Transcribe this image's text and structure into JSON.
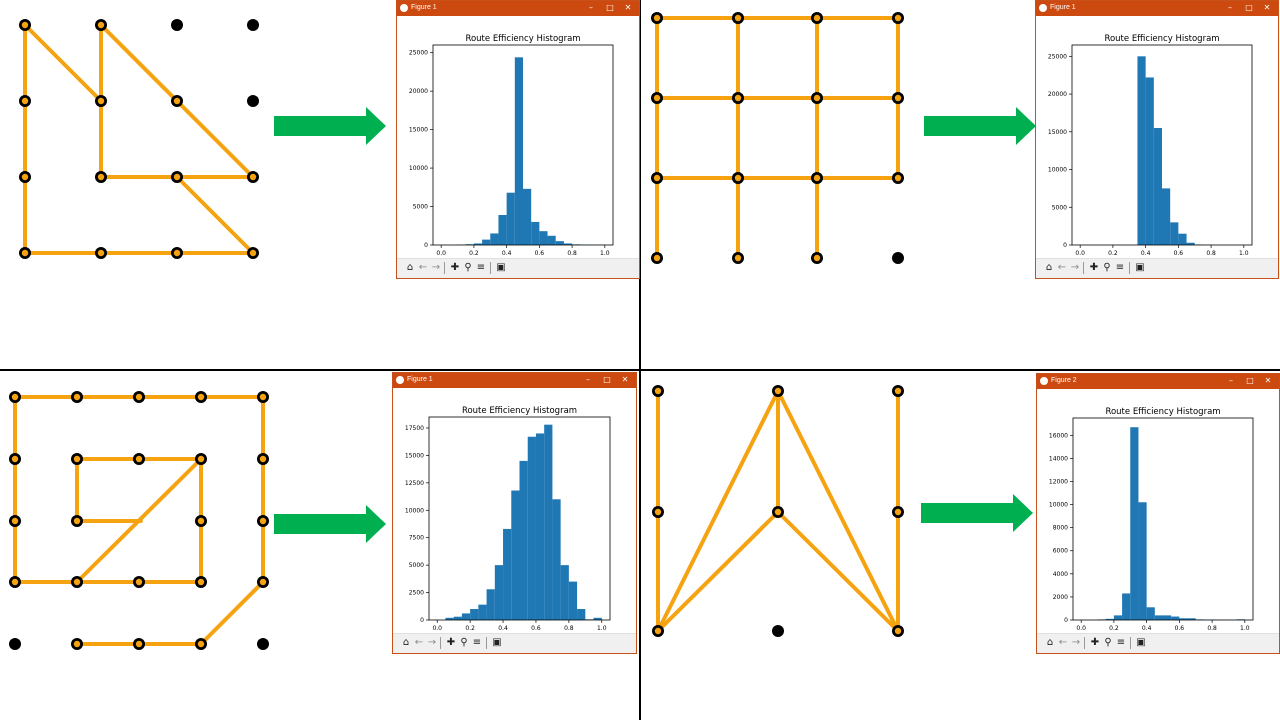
{
  "colors": {
    "edge": "#f5a311",
    "node_fill": "#000000",
    "node_active_inner": "#f5a311",
    "arrow": "#00b050",
    "titlebar": "#cc4a0f",
    "bar": "#1f77b4"
  },
  "panels": [
    {
      "window_title": "Figure 1",
      "nodes_active": [
        [
          0,
          0
        ],
        [
          1,
          0
        ],
        [
          0,
          1
        ],
        [
          1,
          1
        ],
        [
          2,
          1
        ],
        [
          0,
          2
        ],
        [
          1,
          2
        ],
        [
          2,
          2
        ],
        [
          3,
          2
        ],
        [
          0,
          3
        ],
        [
          1,
          3
        ],
        [
          2,
          3
        ],
        [
          3,
          3
        ]
      ],
      "nodes_inactive": [
        [
          2,
          0
        ],
        [
          3,
          0
        ],
        [
          3,
          1
        ]
      ],
      "edges": [
        [
          [
            0,
            0
          ],
          [
            0,
            3
          ]
        ],
        [
          [
            0,
            0
          ],
          [
            1,
            1
          ]
        ],
        [
          [
            1,
            0
          ],
          [
            1,
            2
          ]
        ],
        [
          [
            1,
            0
          ],
          [
            3,
            2
          ]
        ],
        [
          [
            1,
            2
          ],
          [
            3,
            2
          ]
        ],
        [
          [
            2,
            2
          ],
          [
            3,
            3
          ]
        ],
        [
          [
            0,
            3
          ],
          [
            3,
            3
          ]
        ]
      ]
    },
    {
      "window_title": "Figure 1",
      "nodes_active": [
        [
          0,
          0
        ],
        [
          1,
          0
        ],
        [
          2,
          0
        ],
        [
          3,
          0
        ],
        [
          0,
          1
        ],
        [
          1,
          1
        ],
        [
          2,
          1
        ],
        [
          3,
          1
        ],
        [
          0,
          2
        ],
        [
          1,
          2
        ],
        [
          2,
          2
        ],
        [
          3,
          2
        ],
        [
          0,
          3
        ],
        [
          1,
          3
        ],
        [
          2,
          3
        ]
      ],
      "nodes_inactive": [
        [
          3,
          3
        ]
      ],
      "edges": [
        [
          [
            0,
            0
          ],
          [
            3,
            0
          ]
        ],
        [
          [
            0,
            1
          ],
          [
            3,
            1
          ]
        ],
        [
          [
            0,
            2
          ],
          [
            3,
            2
          ]
        ],
        [
          [
            0,
            0
          ],
          [
            0,
            3
          ]
        ],
        [
          [
            1,
            0
          ],
          [
            1,
            3
          ]
        ],
        [
          [
            2,
            0
          ],
          [
            2,
            3
          ]
        ],
        [
          [
            3,
            0
          ],
          [
            3,
            2
          ]
        ]
      ]
    },
    {
      "window_title": "Figure 1",
      "nodes_active": [
        [
          0,
          0
        ],
        [
          1,
          0
        ],
        [
          2,
          0
        ],
        [
          3,
          0
        ],
        [
          4,
          0
        ],
        [
          0,
          1
        ],
        [
          1,
          1
        ],
        [
          2,
          1
        ],
        [
          3,
          1
        ],
        [
          4,
          1
        ],
        [
          0,
          2
        ],
        [
          1,
          2
        ],
        [
          3,
          2
        ],
        [
          4,
          2
        ],
        [
          0,
          3
        ],
        [
          1,
          3
        ],
        [
          2,
          3
        ],
        [
          3,
          3
        ],
        [
          4,
          3
        ],
        [
          1,
          4
        ],
        [
          2,
          4
        ],
        [
          3,
          4
        ]
      ],
      "nodes_inactive": [
        [
          0,
          4
        ],
        [
          4,
          4
        ]
      ],
      "edges": [
        [
          [
            0,
            0
          ],
          [
            4,
            0
          ]
        ],
        [
          [
            0,
            0
          ],
          [
            0,
            3
          ]
        ],
        [
          [
            0,
            3
          ],
          [
            3,
            3
          ]
        ],
        [
          [
            1,
            1
          ],
          [
            3,
            1
          ]
        ],
        [
          [
            1,
            1
          ],
          [
            1,
            2
          ]
        ],
        [
          [
            1,
            2
          ],
          [
            2.03,
            2
          ]
        ],
        [
          [
            1,
            3
          ],
          [
            3,
            1
          ]
        ],
        [
          [
            3,
            1
          ],
          [
            3,
            3
          ]
        ],
        [
          [
            4,
            0
          ],
          [
            4,
            3
          ]
        ],
        [
          [
            4,
            3
          ],
          [
            3,
            4
          ]
        ],
        [
          [
            1,
            4
          ],
          [
            3,
            4
          ]
        ]
      ]
    },
    {
      "window_title": "Figure 2",
      "nodes_active": [
        [
          0,
          0
        ],
        [
          1,
          0
        ],
        [
          2,
          0
        ],
        [
          0,
          1
        ],
        [
          1,
          1
        ],
        [
          2,
          1
        ],
        [
          0,
          2
        ],
        [
          2,
          2
        ]
      ],
      "nodes_inactive": [
        [
          1,
          2
        ]
      ],
      "edges": [
        [
          [
            0,
            0
          ],
          [
            0,
            2
          ]
        ],
        [
          [
            2,
            0
          ],
          [
            2,
            2
          ]
        ],
        [
          [
            1,
            0
          ],
          [
            1,
            1
          ]
        ],
        [
          [
            1,
            0
          ],
          [
            0,
            2
          ]
        ],
        [
          [
            1,
            0
          ],
          [
            2,
            2
          ]
        ],
        [
          [
            1,
            1
          ],
          [
            0,
            2
          ]
        ],
        [
          [
            1,
            1
          ],
          [
            2,
            2
          ]
        ]
      ]
    }
  ],
  "chart_data": [
    {
      "type": "bar",
      "title": "Route Efficiency Histogram",
      "xlabel": "",
      "ylabel": "",
      "xlim": [
        -0.05,
        1.05
      ],
      "ylim": [
        0,
        26000
      ],
      "xticks": [
        "0.0",
        "0.2",
        "0.4",
        "0.6",
        "0.8",
        "1.0"
      ],
      "yticks": [
        "0",
        "5000",
        "10000",
        "15000",
        "20000",
        "25000"
      ],
      "bins": [
        [
          0.1,
          0.15,
          30
        ],
        [
          0.15,
          0.2,
          100
        ],
        [
          0.2,
          0.25,
          200
        ],
        [
          0.25,
          0.3,
          700
        ],
        [
          0.3,
          0.35,
          1500
        ],
        [
          0.35,
          0.4,
          3900
        ],
        [
          0.4,
          0.45,
          6800
        ],
        [
          0.45,
          0.5,
          24400
        ],
        [
          0.5,
          0.55,
          7300
        ],
        [
          0.55,
          0.6,
          3000
        ],
        [
          0.6,
          0.65,
          1800
        ],
        [
          0.65,
          0.7,
          1200
        ],
        [
          0.7,
          0.75,
          500
        ],
        [
          0.75,
          0.8,
          200
        ],
        [
          0.8,
          0.85,
          80
        ],
        [
          0.85,
          0.9,
          30
        ],
        [
          0.9,
          0.95,
          10
        ],
        [
          0.95,
          1.0,
          30
        ]
      ]
    },
    {
      "type": "bar",
      "title": "Route Efficiency Histogram",
      "xlabel": "",
      "ylabel": "",
      "xlim": [
        -0.05,
        1.05
      ],
      "ylim": [
        0,
        26500
      ],
      "xticks": [
        "0.0",
        "0.2",
        "0.4",
        "0.6",
        "0.8",
        "1.0"
      ],
      "yticks": [
        "0",
        "5000",
        "10000",
        "15000",
        "20000",
        "25000"
      ],
      "bins": [
        [
          0.35,
          0.4,
          25000
        ],
        [
          0.4,
          0.45,
          22200
        ],
        [
          0.45,
          0.5,
          15500
        ],
        [
          0.5,
          0.55,
          7500
        ],
        [
          0.55,
          0.6,
          3000
        ],
        [
          0.6,
          0.65,
          1500
        ],
        [
          0.65,
          0.7,
          300
        ],
        [
          0.7,
          0.75,
          60
        ],
        [
          0.75,
          0.8,
          20
        ]
      ]
    },
    {
      "type": "bar",
      "title": "Route Efficiency Histogram",
      "xlabel": "",
      "ylabel": "",
      "xlim": [
        -0.05,
        1.05
      ],
      "ylim": [
        0,
        18500
      ],
      "xticks": [
        "0.0",
        "0.2",
        "0.4",
        "0.6",
        "0.8",
        "1.0"
      ],
      "yticks": [
        "0",
        "2500",
        "5000",
        "7500",
        "10000",
        "12500",
        "15000",
        "17500"
      ],
      "bins": [
        [
          0.05,
          0.1,
          200
        ],
        [
          0.1,
          0.15,
          300
        ],
        [
          0.15,
          0.2,
          600
        ],
        [
          0.2,
          0.25,
          1000
        ],
        [
          0.25,
          0.3,
          1400
        ],
        [
          0.3,
          0.35,
          2800
        ],
        [
          0.35,
          0.4,
          5000
        ],
        [
          0.4,
          0.45,
          8300
        ],
        [
          0.45,
          0.5,
          11800
        ],
        [
          0.5,
          0.55,
          14500
        ],
        [
          0.55,
          0.6,
          16700
        ],
        [
          0.6,
          0.65,
          17000
        ],
        [
          0.65,
          0.7,
          17800
        ],
        [
          0.7,
          0.75,
          11000
        ],
        [
          0.75,
          0.8,
          5000
        ],
        [
          0.8,
          0.85,
          3500
        ],
        [
          0.85,
          0.9,
          1000
        ],
        [
          0.9,
          0.95,
          60
        ],
        [
          0.95,
          1.0,
          200
        ]
      ]
    },
    {
      "type": "bar",
      "title": "Route Efficiency Histogram",
      "xlabel": "",
      "ylabel": "",
      "xlim": [
        -0.05,
        1.05
      ],
      "ylim": [
        0,
        17500
      ],
      "xticks": [
        "0.0",
        "0.2",
        "0.4",
        "0.6",
        "0.8",
        "1.0"
      ],
      "yticks": [
        "0",
        "2000",
        "4000",
        "6000",
        "8000",
        "10000",
        "12000",
        "14000",
        "16000"
      ],
      "bins": [
        [
          0.1,
          0.15,
          50
        ],
        [
          0.15,
          0.2,
          100
        ],
        [
          0.2,
          0.25,
          400
        ],
        [
          0.25,
          0.3,
          2300
        ],
        [
          0.3,
          0.35,
          16700
        ],
        [
          0.35,
          0.4,
          10200
        ],
        [
          0.4,
          0.45,
          1100
        ],
        [
          0.45,
          0.5,
          400
        ],
        [
          0.5,
          0.55,
          400
        ],
        [
          0.55,
          0.6,
          300
        ],
        [
          0.6,
          0.65,
          150
        ],
        [
          0.65,
          0.7,
          150
        ],
        [
          0.7,
          0.75,
          50
        ],
        [
          0.75,
          0.8,
          30
        ],
        [
          0.8,
          0.85,
          30
        ],
        [
          0.85,
          0.9,
          20
        ],
        [
          0.9,
          0.95,
          20
        ],
        [
          0.95,
          1.0,
          60
        ]
      ]
    }
  ]
}
